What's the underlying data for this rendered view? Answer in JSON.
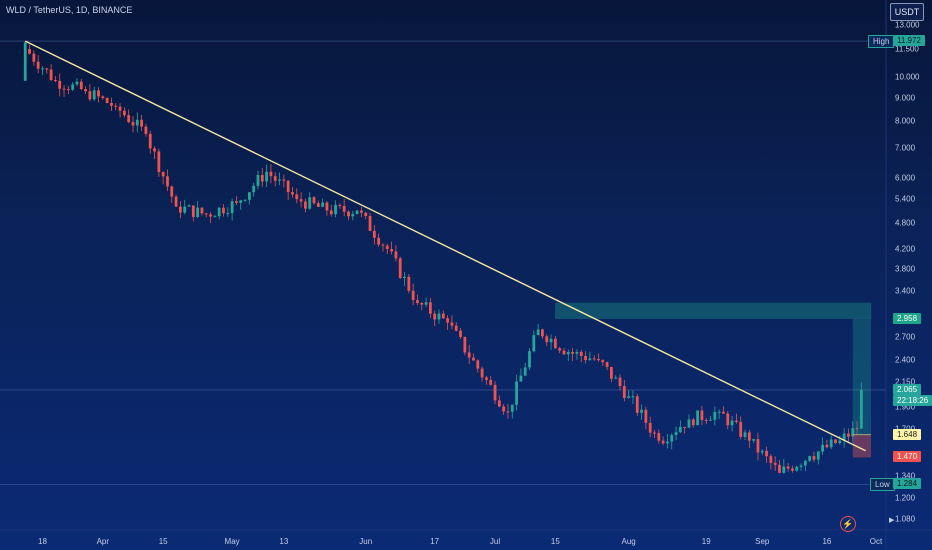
{
  "header": {
    "title": "WLD / TetherUS, 1D, BINANCE",
    "currency_button": "USDT"
  },
  "price_axis": {
    "ticks": [
      "13.000",
      "11.500",
      "10.000",
      "9.000",
      "8.000",
      "7.000",
      "6.000",
      "5.400",
      "4.800",
      "4.200",
      "3.800",
      "3.400",
      "2.700",
      "2.400",
      "2.150",
      "1.900",
      "1.700",
      "1.340",
      "1.200",
      "1.080"
    ],
    "tick_values": [
      13.0,
      11.5,
      10.0,
      9.0,
      8.0,
      7.0,
      6.0,
      5.4,
      4.8,
      4.2,
      3.8,
      3.4,
      2.7,
      2.4,
      2.15,
      1.9,
      1.7,
      1.34,
      1.2,
      1.08
    ]
  },
  "time_axis": {
    "labels": [
      "18",
      "Apr",
      "15",
      "May",
      "13",
      "Jun",
      "17",
      "Jul",
      "15",
      "Aug",
      "19",
      "Sep",
      "16",
      "Oct"
    ]
  },
  "price_tags": {
    "high": {
      "label": "High",
      "value": "11.972"
    },
    "low": {
      "label": "Low",
      "value": "1.284"
    },
    "target": {
      "value": "2.958"
    },
    "current": {
      "value": "2.065",
      "countdown": "22:18:26"
    },
    "entry": {
      "value": "1.648"
    },
    "stop": {
      "value": "1.470"
    }
  },
  "colors": {
    "up": "#26a69a",
    "down": "#ef5350",
    "trendline": "#f5e79e",
    "target_zone": "#1fa68a",
    "stop_zone": "#b5485a",
    "current_tag": "#26a69a",
    "entry_tag": "#fff3a8",
    "stop_tag": "#ef5350"
  },
  "icons": {
    "bolt": "lightning-icon",
    "arrow": "play-icon"
  },
  "chart_data": {
    "type": "candlestick",
    "symbol": "WLD / TetherUS",
    "interval": "1D",
    "exchange": "BINANCE",
    "scale": "log",
    "ylim": [
      1.02,
      14.0
    ],
    "x_start_date": "2024-03-10",
    "dates": [
      "2024-03-14",
      "2024-03-21",
      "2024-03-28",
      "2024-04-04",
      "2024-04-11",
      "2024-04-18",
      "2024-04-25",
      "2024-05-02",
      "2024-05-09",
      "2024-05-16",
      "2024-05-23",
      "2024-05-30",
      "2024-06-06",
      "2024-06-13",
      "2024-06-20",
      "2024-06-27",
      "2024-07-04",
      "2024-07-11",
      "2024-07-18",
      "2024-07-25",
      "2024-08-01",
      "2024-08-08",
      "2024-08-15",
      "2024-08-22",
      "2024-08-29",
      "2024-09-05",
      "2024-09-12",
      "2024-09-19",
      "2024-09-23",
      "2024-09-24"
    ],
    "close": [
      11.5,
      9.8,
      9.3,
      8.6,
      7.5,
      5.2,
      5.0,
      5.3,
      6.2,
      5.4,
      5.1,
      5.1,
      4.2,
      3.2,
      2.9,
      2.3,
      1.85,
      2.8,
      2.5,
      2.4,
      2.0,
      1.6,
      1.78,
      1.85,
      1.6,
      1.36,
      1.48,
      1.6,
      1.7,
      2.065
    ],
    "annotations": {
      "trendline_from": {
        "date": "2024-03-14",
        "price": 11.972
      },
      "trendline_to": {
        "date": "2024-09-25",
        "price": 1.52
      },
      "target_zone": [
        2.958,
        3.2
      ],
      "entry": 1.648,
      "stop": 1.47,
      "high": 11.972,
      "low": 1.284,
      "last_price": 2.065
    }
  }
}
